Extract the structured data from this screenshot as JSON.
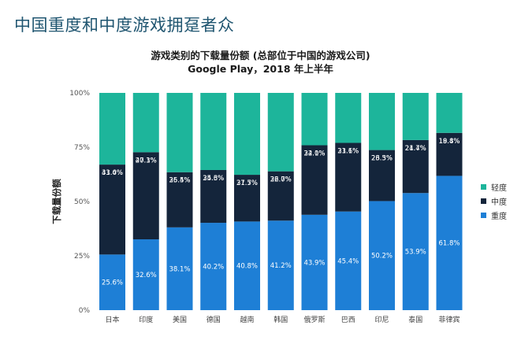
{
  "page_title": "中国重度和中度游戏拥趸者众",
  "chart_data": {
    "type": "bar",
    "stacked": true,
    "title": "游戏类别的下载量份额 (总部位于中国的游戏公司)",
    "subtitle": "Google Play，2018 年上半年",
    "ylabel": "下载量份额",
    "xlabel": "",
    "ylim": [
      0,
      100
    ],
    "yticks": [
      "0%",
      "25%",
      "50%",
      "75%",
      "100%"
    ],
    "categories": [
      "日本",
      "印度",
      "美国",
      "德国",
      "越南",
      "韩国",
      "俄罗斯",
      "巴西",
      "印尼",
      "泰国",
      "菲律宾"
    ],
    "series": [
      {
        "name": "重度",
        "color": "#1e7fd6",
        "values": [
          25.6,
          32.6,
          38.1,
          40.2,
          40.8,
          41.2,
          43.9,
          45.4,
          50.2,
          53.9,
          61.8
        ],
        "labels": [
          "25.6%",
          "32.6%",
          "38.1%",
          "40.2%",
          "40.8%",
          "41.2%",
          "43.9%",
          "45.4%",
          "50.2%",
          "53.9%",
          "61.8%"
        ]
      },
      {
        "name": "中度",
        "color": "#14253b",
        "values": [
          41.4,
          40.1,
          25.4,
          24.3,
          21.5,
          22.7,
          32.0,
          31.6,
          23.5,
          24.4,
          19.8
        ],
        "labels": [
          "41.4%",
          "40.1%",
          "25.4%",
          "24.3%",
          "21.5%",
          "22.7%",
          "32.0%",
          "31.6%",
          "23.5%",
          "24.4%",
          "19.8%"
        ]
      },
      {
        "name": "轻度",
        "color": "#1db59b",
        "values": [
          33.0,
          27.3,
          36.5,
          35.6,
          37.7,
          36.0,
          24.1,
          23.1,
          26.3,
          21.7,
          18.4
        ],
        "labels": [
          "33.0%",
          "27.3%",
          "36.5%",
          "35.6%",
          "37.7%",
          "36.0%",
          "24.1%",
          "23.1%",
          "26.3%",
          "21.7%",
          "18.4%"
        ]
      }
    ],
    "legend": [
      "轻度",
      "中度",
      "重度"
    ],
    "legend_position": "right"
  }
}
